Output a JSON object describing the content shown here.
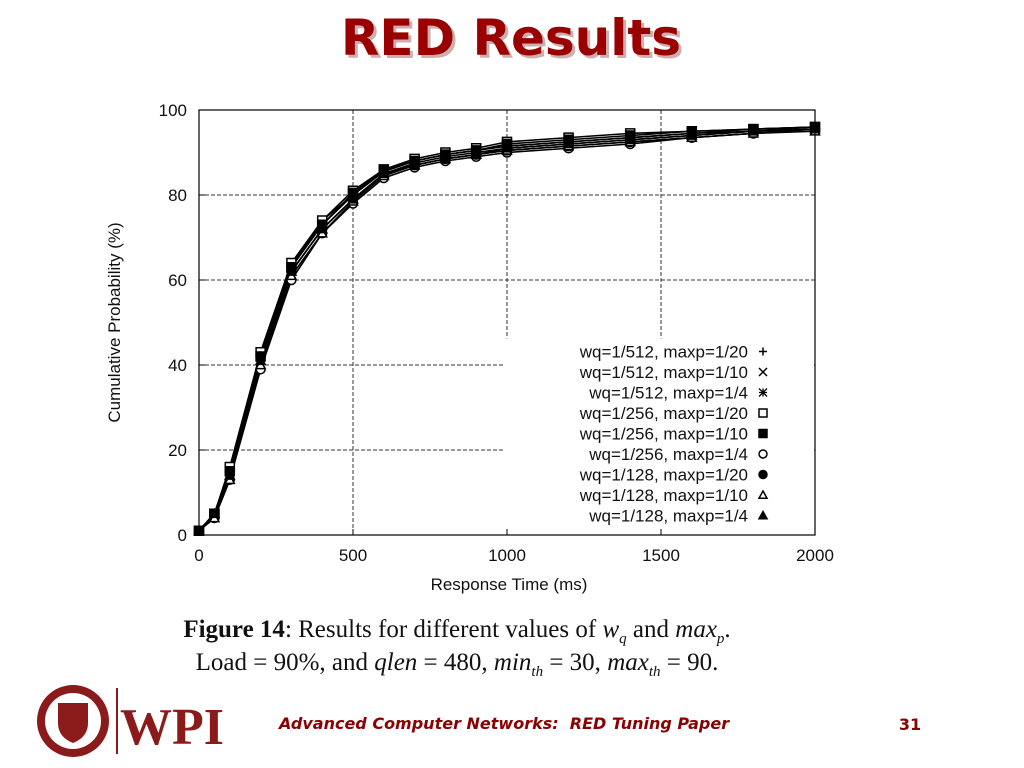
{
  "title": "RED Results",
  "chart_data": {
    "type": "line",
    "xlabel": "Response Time (ms)",
    "ylabel": "Cumulative Probability (%)",
    "xlim": [
      0,
      2000
    ],
    "ylim": [
      0,
      100
    ],
    "xticks": [
      0,
      500,
      1000,
      1500,
      2000
    ],
    "yticks": [
      0,
      20,
      40,
      60,
      80,
      100
    ],
    "grid": true,
    "legend": "lower right",
    "x": [
      0,
      50,
      100,
      200,
      300,
      400,
      500,
      600,
      700,
      800,
      900,
      1000,
      1200,
      1400,
      1600,
      1800,
      2000
    ],
    "series": [
      {
        "name": "wq=1/512, maxp=1/20",
        "color": "#000000",
        "marker": "plus",
        "values": [
          1,
          5,
          14,
          41,
          62,
          72,
          79,
          85,
          87.5,
          89,
          90,
          91,
          92,
          93,
          94,
          95,
          95.5
        ]
      },
      {
        "name": "wq=1/512, maxp=1/10",
        "color": "#000000",
        "marker": "cross",
        "values": [
          1,
          5,
          15,
          43,
          64,
          73,
          80,
          86,
          88,
          89.5,
          90.5,
          91.5,
          92.5,
          93.5,
          94.5,
          95,
          96
        ]
      },
      {
        "name": "wq=1/512, maxp=1/4",
        "color": "#000000",
        "marker": "star",
        "values": [
          1,
          5,
          15,
          42,
          63,
          74,
          80,
          85.5,
          88,
          89.5,
          90.5,
          91.5,
          92.5,
          93.5,
          94.5,
          95.5,
          96
        ]
      },
      {
        "name": "wq=1/256, maxp=1/20",
        "color": "#000000",
        "marker": "square-open",
        "values": [
          1,
          5,
          16,
          43,
          64,
          74,
          81,
          86,
          88.5,
          90,
          91,
          92.5,
          93.5,
          94.5,
          95,
          95.5,
          96
        ]
      },
      {
        "name": "wq=1/256, maxp=1/10",
        "color": "#000000",
        "marker": "square",
        "values": [
          1,
          5,
          15,
          42,
          63,
          73,
          80.5,
          86,
          88,
          89.5,
          90.5,
          92,
          93,
          94,
          95,
          95.5,
          96
        ]
      },
      {
        "name": "wq=1/256, maxp=1/4",
        "color": "#000000",
        "marker": "circle-open",
        "values": [
          1,
          4,
          13,
          39,
          60,
          71,
          78,
          84,
          86.5,
          88,
          89,
          90,
          91,
          92,
          93.5,
          94.5,
          95.5
        ]
      },
      {
        "name": "wq=1/128, maxp=1/20",
        "color": "#000000",
        "marker": "circle",
        "values": [
          1,
          5,
          15,
          42,
          62,
          72,
          79,
          85,
          87,
          88.5,
          89.5,
          90.5,
          91.5,
          92.5,
          93.5,
          94.5,
          95.5
        ]
      },
      {
        "name": "wq=1/128, maxp=1/10",
        "color": "#000000",
        "marker": "triangle-open",
        "values": [
          1,
          4,
          13,
          40,
          61,
          71,
          78.5,
          84.5,
          87,
          88.5,
          89.5,
          90.5,
          91.5,
          92.5,
          93.5,
          94.5,
          95
        ]
      },
      {
        "name": "wq=1/128, maxp=1/4",
        "color": "#000000",
        "marker": "triangle",
        "values": [
          1,
          5,
          14,
          41,
          62,
          72,
          79,
          85,
          87,
          88.5,
          89.5,
          91,
          92,
          93,
          94,
          95,
          95.5
        ]
      }
    ]
  },
  "caption": {
    "lines": [
      [
        {
          "text": "Figure 14",
          "style": "bold"
        },
        {
          "text": ": Results for different values of ",
          "style": "normal"
        },
        {
          "text": "w",
          "style": "italic"
        },
        {
          "text": "q",
          "style": "sub"
        },
        {
          "text": " and ",
          "style": "normal"
        },
        {
          "text": "max",
          "style": "italic"
        },
        {
          "text": "p",
          "style": "sub"
        },
        {
          "text": ".",
          "style": "normal"
        }
      ],
      [
        {
          "text": "Load = 90%, and ",
          "style": "normal"
        },
        {
          "text": "qlen",
          "style": "italic"
        },
        {
          "text": " = 480, ",
          "style": "normal"
        },
        {
          "text": "min",
          "style": "italic"
        },
        {
          "text": "th",
          "style": "sub"
        },
        {
          "text": " = 30, ",
          "style": "normal"
        },
        {
          "text": "max",
          "style": "italic"
        },
        {
          "text": "th",
          "style": "sub"
        },
        {
          "text": " = 90.",
          "style": "normal"
        }
      ]
    ]
  },
  "footer": {
    "logo": "WPI",
    "text": "Advanced Computer Networks:  RED Tuning Paper",
    "page": "31"
  }
}
